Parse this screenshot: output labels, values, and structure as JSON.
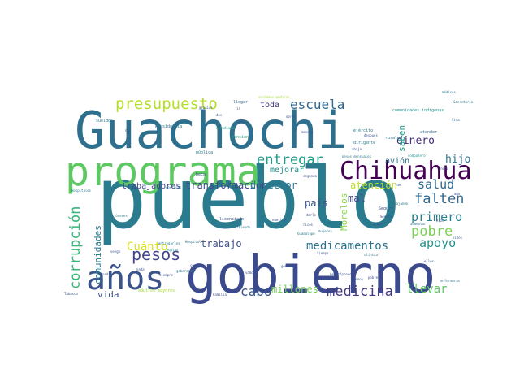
{
  "words": [
    {
      "text": "pueblo",
      "color": "#2a7b8e"
    },
    {
      "text": "Guachochi",
      "color": "#2e6f8e"
    },
    {
      "text": "gobierno",
      "color": "#3b4a8c"
    },
    {
      "text": "programa",
      "color": "#5ec962"
    },
    {
      "text": "Chihuahua",
      "color": "#440154"
    },
    {
      "text": "años",
      "color": "#3a538b"
    },
    {
      "text": "presupuesto",
      "color": "#b5de2b"
    },
    {
      "text": "escuela",
      "color": "#31688e"
    },
    {
      "text": "entregar",
      "color": "#1f9e89"
    },
    {
      "text": "medicamentos",
      "color": "#2c728e"
    },
    {
      "text": "medicina",
      "color": "#443983"
    },
    {
      "text": "pesos",
      "color": "#414487"
    },
    {
      "text": "corrupción",
      "color": "#35b779"
    },
    {
      "text": "pobre",
      "color": "#7ad151"
    },
    {
      "text": "apoyo",
      "color": "#21918c"
    },
    {
      "text": "falten",
      "color": "#31688e"
    },
    {
      "text": "salud",
      "color": "#31688e"
    },
    {
      "text": "primero",
      "color": "#26828e"
    },
    {
      "text": "transformación",
      "color": "#3e4989"
    },
    {
      "text": "dinero",
      "color": "#472d7b"
    },
    {
      "text": "hijo",
      "color": "#2c728e"
    },
    {
      "text": "Cuánto",
      "color": "#d8e219"
    },
    {
      "text": "trabajo",
      "color": "#3b528b"
    },
    {
      "text": "cabo",
      "color": "#39558c"
    },
    {
      "text": "millones",
      "color": "#73d056"
    },
    {
      "text": "llevar",
      "color": "#5ec962"
    },
    {
      "text": "comunidades",
      "color": "#2a788e"
    },
    {
      "text": "trabajadores",
      "color": "#3e4989"
    },
    {
      "text": "director",
      "color": "#2a788e"
    },
    {
      "text": "país",
      "color": "#3b528b"
    },
    {
      "text": "mal",
      "color": "#404688"
    },
    {
      "text": "Morelos",
      "color": "#86d549"
    },
    {
      "text": "atención",
      "color": "#bddf26"
    },
    {
      "text": "mejorar",
      "color": "#21918c"
    },
    {
      "text": "saben",
      "color": "#1f9e89"
    },
    {
      "text": "vida",
      "color": "#3b528b"
    },
    {
      "text": "toda",
      "color": "#453781"
    },
    {
      "text": "avión",
      "color": "#2c728e"
    },
    {
      "text": "sueldos",
      "color": "#2a788e"
    },
    {
      "text": "Presidencia",
      "color": "#2a788e"
    },
    {
      "text": "estudiante",
      "color": "#22a884"
    },
    {
      "text": "pensión",
      "color": "#22a884"
    },
    {
      "text": "pública",
      "color": "#2a788e"
    },
    {
      "text": "beca",
      "color": "#3b528b"
    },
    {
      "text": "llegar",
      "color": "#31688e"
    },
    {
      "text": "ejército",
      "color": "#2a788e"
    },
    {
      "text": "dirigente",
      "color": "#2a788e"
    },
    {
      "text": "rurales",
      "color": "#2a788e"
    },
    {
      "text": "pesos mensuales",
      "color": "#2a788e"
    },
    {
      "text": "comunidades indígenas",
      "color": "#21918c"
    },
    {
      "text": "atender",
      "color": "#31688e"
    },
    {
      "text": "unidades médicas",
      "color": "#a0da39"
    },
    {
      "text": "Visa",
      "color": "#31688e"
    },
    {
      "text": "licenciado",
      "color": "#3b528b"
    },
    {
      "text": "recibiendo",
      "color": "#2a788e"
    },
    {
      "text": "Hospital",
      "color": "#2a788e"
    },
    {
      "text": "equipo",
      "color": "#21918c"
    },
    {
      "text": "entregarles",
      "color": "#2a788e"
    },
    {
      "text": "adultos mayores",
      "color": "#a0da39"
    },
    {
      "text": "Familia",
      "color": "#3b528b"
    },
    {
      "text": "helicóptero",
      "color": "#3b528b"
    },
    {
      "text": "Seguro",
      "color": "#3b528b"
    },
    {
      "text": "médica",
      "color": "#3b528b"
    },
    {
      "text": "hizo",
      "color": "#3b528b"
    },
    {
      "text": "jóvenes",
      "color": "#2a788e"
    },
    {
      "text": "vengo",
      "color": "#3b528b"
    },
    {
      "text": "Tabasco",
      "color": "#3b528b"
    },
    {
      "text": "gente",
      "color": "#3b528b"
    },
    {
      "text": "trabajando",
      "color": "#2a788e"
    },
    {
      "text": "aumentar",
      "color": "#2a788e"
    },
    {
      "text": "abajo",
      "color": "#3b528b"
    },
    {
      "text": "segunda",
      "color": "#3b528b"
    },
    {
      "text": "manera",
      "color": "#3b528b"
    },
    {
      "text": "dar",
      "color": "#3b528b"
    },
    {
      "text": "Hospitales",
      "color": "#2a788e"
    },
    {
      "text": "cada",
      "color": "#3b528b"
    },
    {
      "text": "ir",
      "color": "#3b528b"
    },
    {
      "text": "gobernador",
      "color": "#2a788e"
    },
    {
      "text": "nuestro",
      "color": "#3b528b"
    },
    {
      "text": "compañero",
      "color": "#21918c"
    },
    {
      "text": "Guadalupe",
      "color": "#2a788e"
    },
    {
      "text": "después",
      "color": "#3b528b"
    },
    {
      "text": "menos",
      "color": "#3b528b"
    },
    {
      "text": "darle",
      "color": "#3b528b"
    },
    {
      "text": "ricos",
      "color": "#3b528b"
    },
    {
      "text": "pobres",
      "color": "#3b528b"
    },
    {
      "text": "obras",
      "color": "#3b528b"
    },
    {
      "text": "pagar",
      "color": "#3b528b"
    },
    {
      "text": "médicos",
      "color": "#2a788e"
    },
    {
      "text": "dos",
      "color": "#3b528b"
    },
    {
      "text": "cuatro",
      "color": "#3b528b"
    },
    {
      "text": "Secretaría",
      "color": "#2a788e"
    },
    {
      "text": "vamos",
      "color": "#3b528b"
    },
    {
      "text": "fue",
      "color": "#3b528b"
    },
    {
      "text": "doctores",
      "color": "#2a788e"
    },
    {
      "text": "gracias",
      "color": "#3b528b"
    },
    {
      "text": "tiempo",
      "color": "#3b528b"
    },
    {
      "text": "ellos",
      "color": "#3b528b"
    },
    {
      "text": "clínica",
      "color": "#2a788e"
    },
    {
      "text": "siempre",
      "color": "#3b528b"
    },
    {
      "text": "enfermeras",
      "color": "#2a788e"
    },
    {
      "text": "año",
      "color": "#3b528b"
    },
    {
      "text": "ahora",
      "color": "#3b528b"
    },
    {
      "text": "nada",
      "color": "#3b528b"
    },
    {
      "text": "mujeres",
      "color": "#2a788e"
    },
    {
      "text": "niños",
      "color": "#3b528b"
    },
    {
      "text": "padres",
      "color": "#3b528b"
    }
  ]
}
